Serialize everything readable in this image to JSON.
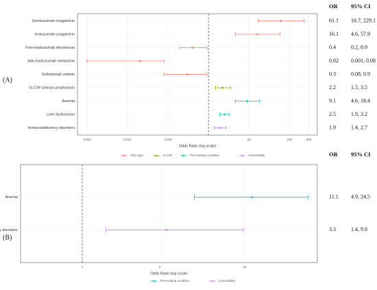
{
  "chart_data": [
    {
      "type": "forest",
      "panel_label": "(A)",
      "xlabel": "Odds Ratio (log scale)",
      "log_x": true,
      "xlim": [
        0.00058,
        490
      ],
      "xticks": [
        0.001,
        {
          "value": 0.01,
          "label": "0.010"
        },
        {
          "value": 0.1,
          "label": "0.100"
        },
        10,
        100,
        300
      ],
      "reference_line": 1,
      "grid": true,
      "legend": "bottom",
      "columns": [
        "OR",
        "95% CI"
      ],
      "groups": [
        {
          "name": "ADC type",
          "color": "#f8766d",
          "rows": [
            {
              "label": "Gemtuzumab ozogamicin",
              "or": 61.1,
              "ci": [
                16.7,
                229.1
              ],
              "ci_label": "16.7, 229.1"
            },
            {
              "label": "Inotuzumab ozogamicin",
              "or": 16.1,
              "ci": [
                4.6,
                57.9
              ],
              "ci_label": "4.6, 57.9"
            },
            {
              "label": "Fam-trastuzumab deruxtecan",
              "or": 0.4,
              "ci": [
                0.2,
                0.9
              ],
              "ci_label": "0.2, 0.9"
            },
            {
              "label": "Ado-trastuzumab emtansine",
              "or": 0.02,
              "ci": [
                0.001,
                0.08
              ],
              "ci_label": "0.001, 0.08"
            },
            {
              "label": "Enfortumab vedotin",
              "or": 0.3,
              "ci": [
                0.08,
                0.9
              ],
              "ci_label": "0.08, 0.9"
            }
          ]
        },
        {
          "name": "G-CSF",
          "color": "#7cae00",
          "rows": [
            {
              "label": "G-CSF primary prophylaxis",
              "or": 2.2,
              "ci": [
                1.5,
                3.5
              ],
              "ci_label": "1.5, 3.5"
            }
          ]
        },
        {
          "name": "Pre-existing condition",
          "color": "#00bfc4",
          "rows": [
            {
              "label": "Anemia",
              "or": 9.1,
              "ci": [
                4.6,
                18.4
              ],
              "ci_label": "4.6, 18.4"
            },
            {
              "label": "Liver dysfunction",
              "or": 2.5,
              "ci": [
                1.9,
                3.2
              ],
              "ci_label": "1.9, 3.2"
            }
          ]
        },
        {
          "name": "Comorbidity",
          "color": "#c77cff",
          "rows": [
            {
              "label": "Immunodeficiency disorders",
              "or": 1.9,
              "ci": [
                1.4,
                2.7
              ],
              "ci_label": "1.4, 2.7"
            }
          ]
        }
      ]
    },
    {
      "type": "forest",
      "panel_label": "(B)",
      "xlabel": "Odds Ratio (log scale)",
      "log_x": true,
      "xlim": [
        0.417,
        28
      ],
      "xticks": [
        1,
        3,
        10
      ],
      "reference_line": 1,
      "grid": true,
      "legend": "bottom",
      "columns": [
        "OR",
        "95% CI"
      ],
      "groups": [
        {
          "name": "Pre-existing condition",
          "color": "#00bfc4",
          "rows": [
            {
              "label": "Anemia",
              "or": 11.1,
              "ci": [
                4.9,
                24.5
              ],
              "ci_label": "4.9, 24.5"
            }
          ]
        },
        {
          "name": "Comorbidity",
          "color": "#c77cff",
          "rows": [
            {
              "label": "Immunodeficiency disorders",
              "or": 3.3,
              "ci": [
                1.4,
                9.8
              ],
              "ci_label": "1.4, 9.8"
            }
          ]
        }
      ]
    }
  ]
}
